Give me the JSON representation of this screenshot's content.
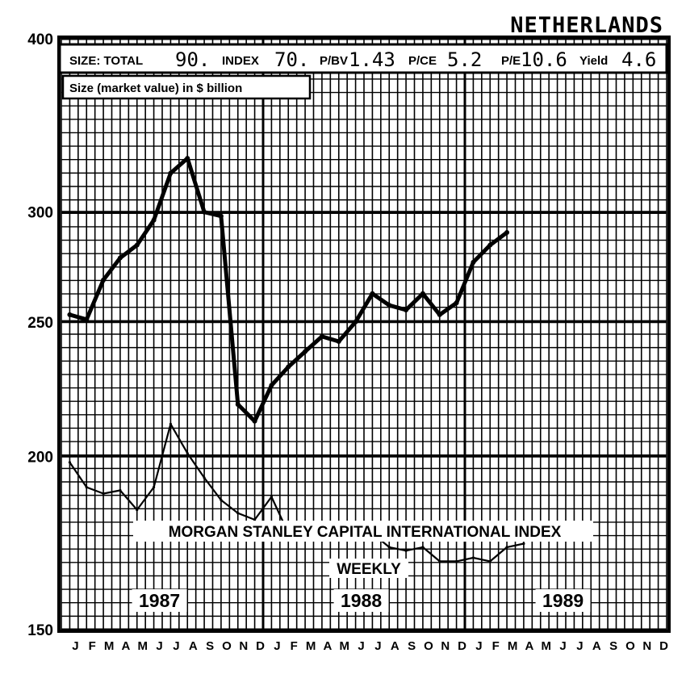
{
  "header": {
    "country": "NETHERLANDS",
    "stats": [
      {
        "label": "SIZE: TOTAL",
        "value": "90."
      },
      {
        "label": "INDEX",
        "value": "70."
      },
      {
        "label": "P/BV",
        "value": "1.43"
      },
      {
        "label": "P/CE",
        "value": "5.2"
      },
      {
        "label": "P/E",
        "value": "10.6"
      },
      {
        "label": "Yield",
        "value": "4.6"
      }
    ],
    "size_note": "Size (market value) in $ billion"
  },
  "chart_data": {
    "type": "line",
    "title": "MORGAN STANLEY CAPITAL INTERNATIONAL INDEX",
    "subtitle": "WEEKLY",
    "yscale": "log",
    "ylim": [
      150,
      400
    ],
    "yticks": [
      150,
      200,
      250,
      300,
      400
    ],
    "x_range": [
      "1987-01",
      "1989-12"
    ],
    "months": [
      "J",
      "F",
      "M",
      "A",
      "M",
      "J",
      "J",
      "A",
      "S",
      "O",
      "N",
      "D",
      "J",
      "F",
      "M",
      "A",
      "M",
      "J",
      "J",
      "A",
      "S",
      "O",
      "N",
      "D",
      "J",
      "F",
      "M",
      "A",
      "M",
      "J",
      "J",
      "A",
      "S",
      "O",
      "N",
      "D"
    ],
    "years": [
      {
        "label": "1987",
        "month": "1987-06"
      },
      {
        "label": "1988",
        "month": "1988-06"
      },
      {
        "label": "1989",
        "month": "1989-06"
      }
    ],
    "grid": true,
    "series": [
      {
        "points": [
          [
            "1987-01",
            253
          ],
          [
            "1987-02",
            251
          ],
          [
            "1987-03",
            268
          ],
          [
            "1987-04",
            278
          ],
          [
            "1987-05",
            284
          ],
          [
            "1987-06",
            296
          ],
          [
            "1987-07",
            320
          ],
          [
            "1987-08",
            328
          ],
          [
            "1987-09",
            300
          ],
          [
            "1987-10",
            298
          ],
          [
            "1987-11",
            218
          ],
          [
            "1987-12",
            212
          ],
          [
            "1988-01",
            225
          ],
          [
            "1988-02",
            232
          ],
          [
            "1988-03",
            238
          ],
          [
            "1988-04",
            244
          ],
          [
            "1988-05",
            242
          ],
          [
            "1988-06",
            250
          ],
          [
            "1988-07",
            262
          ],
          [
            "1988-08",
            257
          ],
          [
            "1988-09",
            255
          ],
          [
            "1988-10",
            262
          ],
          [
            "1988-11",
            253
          ],
          [
            "1988-12",
            258
          ],
          [
            "1989-01",
            276
          ],
          [
            "1989-02",
            284
          ],
          [
            "1989-03",
            290
          ]
        ]
      },
      {
        "points": [
          [
            "1987-01",
            198
          ],
          [
            "1987-02",
            190
          ],
          [
            "1987-03",
            188
          ],
          [
            "1987-04",
            189
          ],
          [
            "1987-05",
            183
          ],
          [
            "1987-06",
            190
          ],
          [
            "1987-07",
            211
          ],
          [
            "1987-08",
            201
          ],
          [
            "1987-09",
            193
          ],
          [
            "1987-10",
            186
          ],
          [
            "1987-11",
            182
          ],
          [
            "1987-12",
            180
          ],
          [
            "1988-01",
            187
          ],
          [
            "1988-02",
            176
          ],
          [
            "1988-03",
            176
          ],
          [
            "1988-04",
            175
          ],
          [
            "1988-05",
            174
          ],
          [
            "1988-06",
            175
          ],
          [
            "1988-07",
            176
          ],
          [
            "1988-08",
            172
          ],
          [
            "1988-09",
            171
          ],
          [
            "1988-10",
            172
          ],
          [
            "1988-11",
            168
          ],
          [
            "1988-12",
            168
          ],
          [
            "1989-01",
            169
          ],
          [
            "1989-02",
            168
          ],
          [
            "1989-03",
            172
          ],
          [
            "1989-04",
            173
          ]
        ]
      }
    ]
  }
}
